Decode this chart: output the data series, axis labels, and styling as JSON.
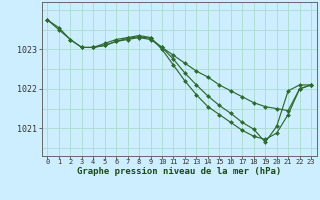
{
  "background_color": "#cceeff",
  "plot_bg_color": "#cceeff",
  "grid_color": "#aadddd",
  "line_color": "#2d6a2d",
  "marker_color": "#2d6a2d",
  "xlabel": "Graphe pression niveau de la mer (hPa)",
  "xlabel_fontsize": 6.5,
  "yticks": [
    1021,
    1022,
    1023
  ],
  "ylim": [
    1020.3,
    1024.2
  ],
  "xlim": [
    -0.5,
    23.5
  ],
  "xticks": [
    0,
    1,
    2,
    3,
    4,
    5,
    6,
    7,
    8,
    9,
    10,
    11,
    12,
    13,
    14,
    15,
    16,
    17,
    18,
    19,
    20,
    21,
    22,
    23
  ],
  "xtick_fontsize": 5.0,
  "ytick_fontsize": 6.0,
  "series": [
    {
      "x": [
        0,
        1,
        2,
        3,
        4,
        5,
        6,
        7,
        8,
        9,
        10,
        11,
        12,
        13,
        14,
        15,
        16,
        17,
        18,
        19,
        20,
        21,
        22,
        23
      ],
      "y": [
        1023.75,
        1023.55,
        1023.25,
        1023.05,
        1023.05,
        1023.1,
        1023.2,
        1023.25,
        1023.3,
        1023.25,
        1023.05,
        1022.85,
        1022.65,
        1022.45,
        1022.3,
        1022.1,
        1021.95,
        1021.8,
        1021.65,
        1021.55,
        1021.5,
        1021.45,
        1022.0,
        1022.1
      ]
    },
    {
      "x": [
        0,
        1,
        2,
        3,
        4,
        5,
        6,
        7,
        8,
        9,
        10,
        11,
        12,
        13,
        14,
        15,
        16,
        17,
        18,
        19,
        20,
        21,
        22,
        23
      ],
      "y": [
        1023.75,
        1023.5,
        1023.25,
        1023.05,
        1023.05,
        1023.15,
        1023.25,
        1023.3,
        1023.35,
        1023.3,
        1023.0,
        1022.6,
        1022.2,
        1021.85,
        1021.55,
        1021.35,
        1021.15,
        1020.95,
        1020.8,
        1020.72,
        1020.88,
        1021.35,
        1022.0,
        1022.1
      ]
    },
    {
      "x": [
        4,
        5,
        6,
        7,
        8,
        9,
        10,
        11,
        12,
        13,
        14,
        15,
        16,
        17,
        18,
        19,
        20,
        21,
        22,
        23
      ],
      "y": [
        1023.05,
        1023.1,
        1023.2,
        1023.28,
        1023.32,
        1023.28,
        1023.05,
        1022.75,
        1022.4,
        1022.1,
        1021.82,
        1021.58,
        1021.38,
        1021.15,
        1020.98,
        1020.65,
        1021.05,
        1021.95,
        1022.1,
        1022.1
      ]
    }
  ]
}
